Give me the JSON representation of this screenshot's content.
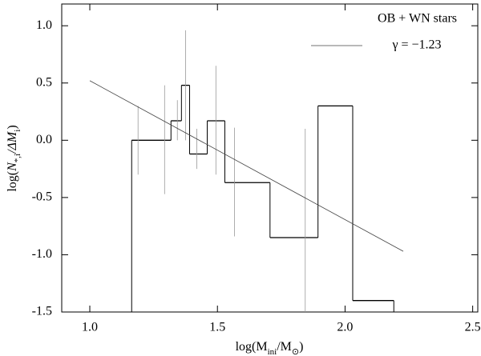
{
  "chart_data": {
    "type": "histogram",
    "legend_title": "OB + WN stars",
    "xlabel": [
      "log(M",
      "ini",
      "/M",
      "⊙",
      ")"
    ],
    "ylabel": [
      "log(",
      "N",
      "*,i",
      "/ΔM",
      "i",
      ")"
    ],
    "bins": [
      1.164,
      1.318,
      1.359,
      1.391,
      1.46,
      1.529,
      1.706,
      1.894,
      2.03,
      2.191
    ],
    "counts": [
      0.0,
      0.17,
      0.48,
      -0.12,
      0.17,
      -0.37,
      -0.85,
      0.3,
      -1.4
    ],
    "color": "#000000",
    "errorbars": {
      "x": [
        1.189,
        1.293,
        1.343,
        1.375,
        1.419,
        1.494,
        1.567,
        1.844
      ],
      "low": [
        -0.3,
        -0.47,
        0.0,
        0.0,
        -0.25,
        -0.3,
        -0.84,
        -1.5
      ],
      "high": [
        0.3,
        0.48,
        0.35,
        0.96,
        0.1,
        0.65,
        0.11,
        0.1
      ],
      "color": "#999999"
    },
    "fit": {
      "name": "γ = −1.23",
      "x": [
        1.0,
        2.228
      ],
      "y": [
        0.52,
        -0.97
      ],
      "color": "#444444"
    },
    "xlim": [
      0.89,
      2.52
    ],
    "ylim": [
      -1.5,
      1.19
    ],
    "xticks": [
      {
        "value": 1.0,
        "label": "1.0"
      },
      1.5,
      {
        "value": 2.0,
        "label": "2.0"
      },
      2.5
    ],
    "yticks": [
      {
        "value": 1.0,
        "label": "1.0"
      },
      0.5,
      {
        "value": 0.0,
        "label": "0.0"
      },
      -0.5,
      {
        "value": -1.0,
        "label": "-1.0"
      },
      -1.5
    ]
  }
}
